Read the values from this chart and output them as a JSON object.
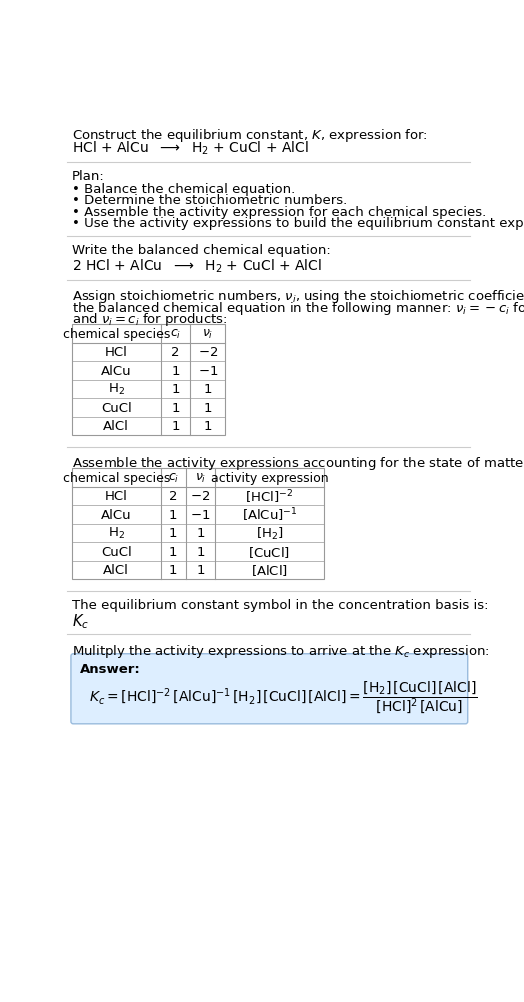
{
  "title_line1": "Construct the equilibrium constant, $K$, expression for:",
  "title_line2": "HCl + AlCu  $\\longrightarrow$  H$_2$ + CuCl + AlCl",
  "plan_header": "Plan:",
  "plan_bullets": [
    "• Balance the chemical equation.",
    "• Determine the stoichiometric numbers.",
    "• Assemble the activity expression for each chemical species.",
    "• Use the activity expressions to build the equilibrium constant expression."
  ],
  "balanced_header": "Write the balanced chemical equation:",
  "balanced_eq": "2 HCl + AlCu  $\\longrightarrow$  H$_2$ + CuCl + AlCl",
  "stoich_header_l1": "Assign stoichiometric numbers, $\\nu_i$, using the stoichiometric coefficients, $c_i$, from",
  "stoich_header_l2": "the balanced chemical equation in the following manner: $\\nu_i = -c_i$ for reactants",
  "stoich_header_l3": "and $\\nu_i = c_i$ for products:",
  "table1_cols": [
    "chemical species",
    "$c_i$",
    "$\\nu_i$"
  ],
  "table1_rows": [
    [
      "HCl",
      "2",
      "$-2$"
    ],
    [
      "AlCu",
      "1",
      "$-1$"
    ],
    [
      "H$_2$",
      "1",
      "1"
    ],
    [
      "CuCl",
      "1",
      "1"
    ],
    [
      "AlCl",
      "1",
      "1"
    ]
  ],
  "activity_header": "Assemble the activity expressions accounting for the state of matter and $\\nu_i$:",
  "table2_cols": [
    "chemical species",
    "$c_i$",
    "$\\nu_i$",
    "activity expression"
  ],
  "table2_rows": [
    [
      "HCl",
      "2",
      "$-2$",
      "$[\\mathrm{HCl}]^{-2}$"
    ],
    [
      "AlCu",
      "1",
      "$-1$",
      "$[\\mathrm{AlCu}]^{-1}$"
    ],
    [
      "H$_2$",
      "1",
      "1",
      "$[\\mathrm{H}_2]$"
    ],
    [
      "CuCl",
      "1",
      "1",
      "$[\\mathrm{CuCl}]$"
    ],
    [
      "AlCl",
      "1",
      "1",
      "$[\\mathrm{AlCl}]$"
    ]
  ],
  "kc_header": "The equilibrium constant symbol in the concentration basis is:",
  "kc_symbol": "$K_c$",
  "multiply_header": "Mulitply the activity expressions to arrive at the $K_c$ expression:",
  "answer_label": "Answer:",
  "answer_eq_full": "$K_c = [\\mathrm{HCl}]^{-2}\\,[\\mathrm{AlCu}]^{-1}\\,[\\mathrm{H}_2]\\,[\\mathrm{CuCl}]\\,[\\mathrm{AlCl}] = \\dfrac{[\\mathrm{H}_2]\\,[\\mathrm{CuCl}]\\,[\\mathrm{AlCl}]}{[\\mathrm{HCl}]^2\\,[\\mathrm{AlCu}]}$",
  "bg_color": "#ffffff",
  "table_border_color": "#999999",
  "answer_box_color": "#ddeeff",
  "text_color": "#000000",
  "font_size": 9.5,
  "answer_box_border": "#99bbdd"
}
